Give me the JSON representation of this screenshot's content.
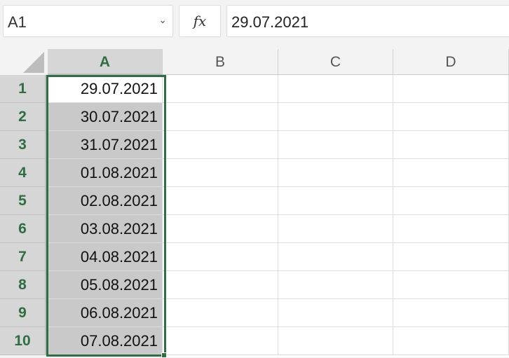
{
  "name_box": {
    "value": "A1"
  },
  "formula_bar": {
    "fx_label": "fx",
    "value": "29.07.2021"
  },
  "columns": [
    "A",
    "B",
    "C",
    "D"
  ],
  "rows": [
    {
      "num": "1",
      "a": "29.07.2021"
    },
    {
      "num": "2",
      "a": "30.07.2021"
    },
    {
      "num": "3",
      "a": "31.07.2021"
    },
    {
      "num": "4",
      "a": "01.08.2021"
    },
    {
      "num": "5",
      "a": "02.08.2021"
    },
    {
      "num": "6",
      "a": "03.08.2021"
    },
    {
      "num": "7",
      "a": "04.08.2021"
    },
    {
      "num": "8",
      "a": "05.08.2021"
    },
    {
      "num": "9",
      "a": "06.08.2021"
    },
    {
      "num": "10",
      "a": "07.08.2021"
    }
  ],
  "colors": {
    "accent": "#2f6e43",
    "selection_fill": "#c9c9c9"
  }
}
